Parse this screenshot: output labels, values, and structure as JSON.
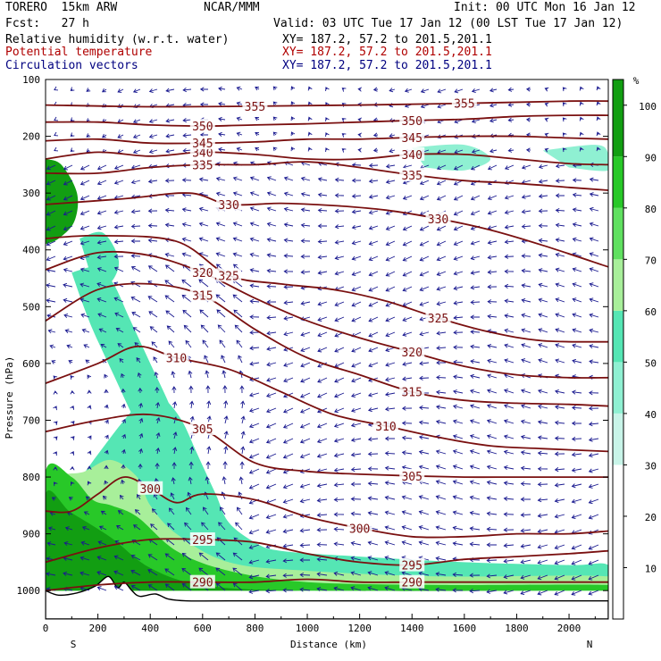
{
  "header": {
    "model": "TORERO  15km ARW",
    "org": "NCAR/MMM",
    "init": "Init: 00 UTC Mon 16 Jan 12",
    "fcst": "Fcst:   27 h",
    "valid": "Valid: 03 UTC Tue 17 Jan 12 (00 LST Tue 17 Jan 12)",
    "fields": [
      {
        "name": "Relative humidity (w.r.t. water)",
        "xy": "XY= 187.2, 57.2 to 201.5,201.1",
        "color": "#000000"
      },
      {
        "name": "Potential temperature",
        "xy": "XY= 187.2, 57.2 to 201.5,201.1",
        "color": "#b00000"
      },
      {
        "name": "Circulation vectors",
        "xy": "XY= 187.2, 57.2 to 201.5,201.1",
        "color": "#000080"
      }
    ]
  },
  "chart_data": {
    "type": "heatmap",
    "title": "Relative humidity (w.r.t. water)",
    "xlabel": "Distance (km)",
    "ylabel": "Pressure (hPa)",
    "xlim": [
      0,
      2150
    ],
    "ylim": [
      1050,
      100
    ],
    "x_ticks": [
      "0",
      "200",
      "400",
      "600",
      "800",
      "1000",
      "1200",
      "1400",
      "1600",
      "1800",
      "2000"
    ],
    "y_ticks": [
      "100",
      "200",
      "300",
      "400",
      "500",
      "600",
      "700",
      "800",
      "900",
      "1000"
    ],
    "end_labels": {
      "left": "S",
      "right": "N"
    },
    "colorbar": {
      "unit": "%",
      "ticks": [
        "10",
        "20",
        "30",
        "40",
        "50",
        "60",
        "70",
        "80",
        "90",
        "100"
      ],
      "bands": [
        {
          "from": 0,
          "to": 30,
          "color": "#ffffff"
        },
        {
          "from": 30,
          "to": 40,
          "color": "#c8f4e8"
        },
        {
          "from": 40,
          "to": 50,
          "color": "#8ff0d2"
        },
        {
          "from": 50,
          "to": 60,
          "color": "#55e6b4"
        },
        {
          "from": 60,
          "to": 70,
          "color": "#a8ef9a"
        },
        {
          "from": 70,
          "to": 80,
          "color": "#60e060"
        },
        {
          "from": 80,
          "to": 90,
          "color": "#28c828"
        },
        {
          "from": 90,
          "to": 105,
          "color": "#129e12"
        }
      ]
    },
    "theta_contours": [
      {
        "value": 290,
        "label": "290",
        "points": [
          [
            0,
            1000
          ],
          [
            200,
            990
          ],
          [
            400,
            985
          ],
          [
            600,
            985
          ],
          [
            800,
            985
          ],
          [
            1000,
            980
          ],
          [
            1200,
            985
          ],
          [
            1400,
            985
          ],
          [
            1600,
            985
          ],
          [
            1800,
            985
          ],
          [
            2000,
            985
          ],
          [
            2150,
            985
          ]
        ]
      },
      {
        "value": 295,
        "label": "295",
        "points": [
          [
            0,
            950
          ],
          [
            200,
            925
          ],
          [
            400,
            910
          ],
          [
            600,
            910
          ],
          [
            800,
            915
          ],
          [
            1000,
            935
          ],
          [
            1200,
            950
          ],
          [
            1400,
            955
          ],
          [
            1600,
            945
          ],
          [
            1800,
            940
          ],
          [
            2000,
            935
          ],
          [
            2150,
            930
          ]
        ]
      },
      {
        "value": 300,
        "label": "300",
        "points": [
          [
            0,
            860
          ],
          [
            100,
            860
          ],
          [
            200,
            830
          ],
          [
            300,
            800
          ],
          [
            400,
            820
          ],
          [
            500,
            845
          ],
          [
            600,
            830
          ],
          [
            800,
            840
          ],
          [
            1000,
            870
          ],
          [
            1200,
            890
          ],
          [
            1400,
            905
          ],
          [
            1600,
            905
          ],
          [
            1800,
            900
          ],
          [
            2000,
            900
          ],
          [
            2150,
            895
          ]
        ]
      },
      {
        "value": 305,
        "label": "305",
        "points": [
          [
            0,
            720
          ],
          [
            200,
            700
          ],
          [
            400,
            690
          ],
          [
            600,
            715
          ],
          [
            800,
            775
          ],
          [
            1000,
            790
          ],
          [
            1200,
            795
          ],
          [
            1400,
            798
          ],
          [
            1600,
            800
          ],
          [
            1800,
            800
          ],
          [
            2000,
            800
          ],
          [
            2150,
            800
          ]
        ]
      },
      {
        "value": 310,
        "label": "310",
        "points": [
          [
            0,
            635
          ],
          [
            200,
            600
          ],
          [
            350,
            570
          ],
          [
            500,
            590
          ],
          [
            700,
            610
          ],
          [
            900,
            650
          ],
          [
            1100,
            690
          ],
          [
            1300,
            710
          ],
          [
            1500,
            730
          ],
          [
            1700,
            745
          ],
          [
            1900,
            750
          ],
          [
            2150,
            755
          ]
        ]
      },
      {
        "value": 315,
        "label": "315",
        "points": [
          [
            0,
            525
          ],
          [
            200,
            470
          ],
          [
            400,
            460
          ],
          [
            600,
            480
          ],
          [
            800,
            540
          ],
          [
            1000,
            590
          ],
          [
            1200,
            620
          ],
          [
            1400,
            650
          ],
          [
            1600,
            665
          ],
          [
            1800,
            670
          ],
          [
            2000,
            672
          ],
          [
            2150,
            675
          ]
        ]
      },
      {
        "value": 320,
        "label": "320",
        "points": [
          [
            0,
            435
          ],
          [
            200,
            405
          ],
          [
            400,
            410
          ],
          [
            600,
            440
          ],
          [
            800,
            485
          ],
          [
            1000,
            525
          ],
          [
            1200,
            555
          ],
          [
            1400,
            580
          ],
          [
            1600,
            605
          ],
          [
            1800,
            620
          ],
          [
            2000,
            625
          ],
          [
            2150,
            625
          ]
        ]
      },
      {
        "value": 325,
        "label": "325",
        "points": [
          [
            0,
            380
          ],
          [
            200,
            375
          ],
          [
            500,
            385
          ],
          [
            700,
            445
          ],
          [
            900,
            460
          ],
          [
            1100,
            470
          ],
          [
            1300,
            490
          ],
          [
            1500,
            520
          ],
          [
            1700,
            545
          ],
          [
            1900,
            560
          ],
          [
            2150,
            562
          ]
        ]
      },
      {
        "value": 330,
        "label": "330",
        "points": [
          [
            0,
            320
          ],
          [
            300,
            310
          ],
          [
            550,
            300
          ],
          [
            700,
            320
          ],
          [
            900,
            318
          ],
          [
            1100,
            322
          ],
          [
            1300,
            330
          ],
          [
            1500,
            345
          ],
          [
            1700,
            365
          ],
          [
            1900,
            392
          ],
          [
            2150,
            430
          ]
        ]
      },
      {
        "value": 335,
        "label": "335",
        "points": [
          [
            0,
            265
          ],
          [
            200,
            265
          ],
          [
            400,
            255
          ],
          [
            600,
            250
          ],
          [
            800,
            250
          ],
          [
            1000,
            245
          ],
          [
            1200,
            255
          ],
          [
            1400,
            268
          ],
          [
            1600,
            278
          ],
          [
            1800,
            283
          ],
          [
            2000,
            290
          ],
          [
            2150,
            295
          ]
        ]
      },
      {
        "value": 340,
        "label": "340",
        "points": [
          [
            0,
            240
          ],
          [
            200,
            228
          ],
          [
            400,
            235
          ],
          [
            600,
            228
          ],
          [
            800,
            232
          ],
          [
            1000,
            240
          ],
          [
            1200,
            240
          ],
          [
            1400,
            232
          ],
          [
            1600,
            232
          ],
          [
            1800,
            240
          ],
          [
            2000,
            248
          ],
          [
            2150,
            250
          ]
        ]
      },
      {
        "value": 345,
        "label": "345",
        "points": [
          [
            0,
            208
          ],
          [
            200,
            205
          ],
          [
            400,
            212
          ],
          [
            600,
            212
          ],
          [
            800,
            210
          ],
          [
            1000,
            205
          ],
          [
            1200,
            205
          ],
          [
            1400,
            202
          ],
          [
            1600,
            200
          ],
          [
            1800,
            200
          ],
          [
            2000,
            203
          ],
          [
            2150,
            205
          ]
        ]
      },
      {
        "value": 350,
        "label": "350",
        "points": [
          [
            0,
            175
          ],
          [
            200,
            175
          ],
          [
            400,
            180
          ],
          [
            600,
            182
          ],
          [
            800,
            180
          ],
          [
            1000,
            178
          ],
          [
            1200,
            175
          ],
          [
            1400,
            172
          ],
          [
            1600,
            170
          ],
          [
            1800,
            165
          ],
          [
            2000,
            163
          ],
          [
            2150,
            163
          ]
        ]
      },
      {
        "value": 355,
        "label": "355",
        "points": [
          [
            0,
            145
          ],
          [
            400,
            148
          ],
          [
            800,
            147
          ],
          [
            1200,
            145
          ],
          [
            1600,
            142
          ],
          [
            2000,
            138
          ],
          [
            2150,
            138
          ]
        ]
      }
    ],
    "rh_regions": [
      {
        "band": 3,
        "points": [
          [
            0,
            1000
          ],
          [
            0,
            850
          ],
          [
            100,
            820
          ],
          [
            200,
            760
          ],
          [
            300,
            700
          ],
          [
            400,
            650
          ],
          [
            450,
            660
          ],
          [
            520,
            700
          ],
          [
            580,
            760
          ],
          [
            650,
            830
          ],
          [
            700,
            880
          ],
          [
            800,
            915
          ],
          [
            900,
            930
          ],
          [
            1200,
            940
          ],
          [
            1600,
            950
          ],
          [
            2000,
            955
          ],
          [
            2150,
            955
          ],
          [
            2150,
            1000
          ]
        ]
      },
      {
        "band": 4,
        "points": [
          [
            0,
            1000
          ],
          [
            0,
            820
          ],
          [
            150,
            790
          ],
          [
            250,
            770
          ],
          [
            350,
            800
          ],
          [
            400,
            850
          ],
          [
            500,
            900
          ],
          [
            700,
            950
          ],
          [
            1000,
            965
          ],
          [
            1500,
            975
          ],
          [
            2150,
            975
          ],
          [
            2150,
            1000
          ]
        ]
      },
      {
        "band": 6,
        "points": [
          [
            0,
            1000
          ],
          [
            0,
            790
          ],
          [
            100,
            800
          ],
          [
            180,
            840
          ],
          [
            250,
            850
          ],
          [
            350,
            870
          ],
          [
            500,
            930
          ],
          [
            700,
            965
          ],
          [
            1000,
            985
          ],
          [
            1500,
            990
          ],
          [
            2150,
            990
          ],
          [
            2150,
            1000
          ]
        ]
      },
      {
        "band": 7,
        "points": [
          [
            0,
            1000
          ],
          [
            0,
            830
          ],
          [
            90,
            860
          ],
          [
            160,
            880
          ],
          [
            260,
            910
          ],
          [
            400,
            960
          ],
          [
            600,
            990
          ],
          [
            1000,
            1000
          ],
          [
            2150,
            1000
          ]
        ]
      },
      {
        "band": 3,
        "points": [
          [
            100,
            440
          ],
          [
            200,
            430
          ],
          [
            260,
            460
          ],
          [
            320,
            520
          ],
          [
            400,
            600
          ],
          [
            480,
            680
          ],
          [
            540,
            760
          ],
          [
            560,
            820
          ],
          [
            500,
            830
          ],
          [
            420,
            780
          ],
          [
            340,
            700
          ],
          [
            260,
            620
          ],
          [
            180,
            540
          ],
          [
            130,
            480
          ]
        ]
      },
      {
        "band": 7,
        "points": [
          [
            0,
            240
          ],
          [
            60,
            250
          ],
          [
            120,
            300
          ],
          [
            110,
            350
          ],
          [
            50,
            380
          ],
          [
            0,
            390
          ]
        ]
      },
      {
        "band": 3,
        "points": [
          [
            130,
            380
          ],
          [
            220,
            370
          ],
          [
            280,
            420
          ],
          [
            240,
            460
          ],
          [
            170,
            440
          ]
        ]
      },
      {
        "band": 2,
        "points": [
          [
            1400,
            220
          ],
          [
            1600,
            215
          ],
          [
            1700,
            240
          ],
          [
            1600,
            260
          ],
          [
            1450,
            255
          ]
        ]
      },
      {
        "band": 2,
        "points": [
          [
            1900,
            225
          ],
          [
            2100,
            215
          ],
          [
            2150,
            230
          ],
          [
            2150,
            260
          ],
          [
            2000,
            255
          ]
        ]
      }
    ],
    "terrain": [
      [
        0,
        1000
      ],
      [
        50,
        1008
      ],
      [
        120,
        1004
      ],
      [
        190,
        992
      ],
      [
        240,
        975
      ],
      [
        275,
        995
      ],
      [
        300,
        985
      ],
      [
        330,
        1000
      ],
      [
        360,
        1010
      ],
      [
        420,
        1006
      ],
      [
        470,
        1015
      ],
      [
        540,
        1018
      ],
      [
        700,
        1018
      ],
      [
        1200,
        1018
      ],
      [
        2150,
        1018
      ]
    ]
  }
}
